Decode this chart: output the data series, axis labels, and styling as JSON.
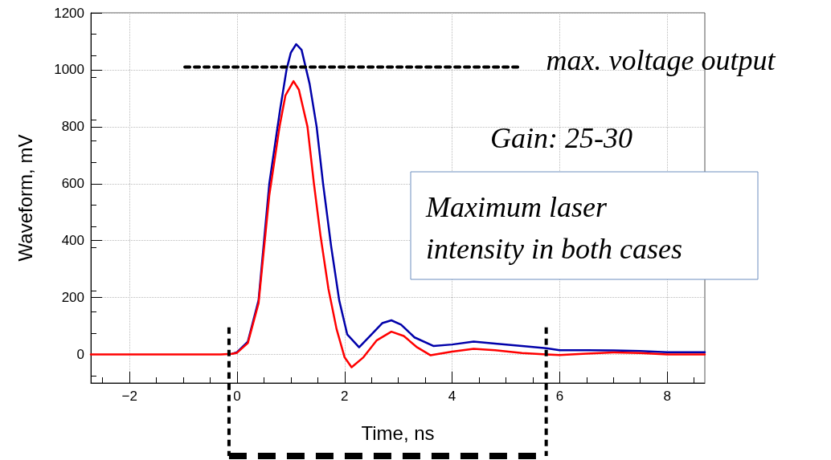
{
  "chart_data": {
    "type": "line",
    "xlabel": "Time, ns",
    "ylabel": "Waveform, mV",
    "xlim": [
      -2.72,
      8.7
    ],
    "ylim": [
      -100,
      1200
    ],
    "xticks": [
      -2,
      0,
      2,
      4,
      6,
      8
    ],
    "yticks": [
      0,
      200,
      400,
      600,
      800,
      1000,
      1200
    ],
    "grid": true,
    "marker": "none",
    "line_style": "solid",
    "series": [
      {
        "color": "#0000aa",
        "x": [
          -0.1,
          0,
          0.2,
          0.4,
          0.6,
          0.8,
          0.92,
          1.0,
          1.1,
          1.2,
          1.35,
          1.48,
          1.6,
          1.75,
          1.9,
          2.05,
          2.27,
          2.5,
          2.7,
          2.87,
          3.05,
          3.3,
          3.65,
          4.0,
          4.4,
          4.8,
          5.3,
          5.75,
          6.0,
          6.5,
          7.0,
          7.5,
          8.0,
          8.7
        ],
        "values": [
          2,
          8,
          45,
          190,
          600,
          860,
          1000,
          1060,
          1090,
          1070,
          950,
          800,
          600,
          380,
          190,
          70,
          25,
          70,
          110,
          120,
          105,
          60,
          30,
          35,
          45,
          38,
          30,
          22,
          15,
          15,
          14,
          12,
          8,
          8
        ]
      },
      {
        "color": "#ff0000",
        "x": [
          -2.72,
          -1,
          -0.3,
          -0.1,
          0,
          0.2,
          0.4,
          0.6,
          0.79,
          0.9,
          1.05,
          1.15,
          1.31,
          1.43,
          1.55,
          1.7,
          1.85,
          2.0,
          2.13,
          2.35,
          2.6,
          2.87,
          3.1,
          3.35,
          3.6,
          4.0,
          4.4,
          4.8,
          5.3,
          5.75,
          6.0,
          6.5,
          7.0,
          7.5,
          8.0,
          8.7
        ],
        "values": [
          0,
          0,
          0,
          2,
          6,
          40,
          180,
          560,
          800,
          910,
          960,
          930,
          800,
          600,
          420,
          230,
          90,
          -10,
          -45,
          -10,
          50,
          80,
          65,
          25,
          -3,
          10,
          20,
          15,
          5,
          0,
          -2,
          3,
          7,
          5,
          0,
          0
        ]
      },
      {
        "color": "#000000",
        "line_style": "dashed",
        "x": [
          -0.97,
          5.3
        ],
        "values": [
          1010,
          1010
        ]
      }
    ],
    "ref_lines": [
      {
        "axis": "x",
        "value": -0.15,
        "color": "#000000",
        "line_style": "dashed"
      },
      {
        "axis": "x",
        "value": 5.75,
        "color": "#000000",
        "line_style": "dashed"
      }
    ],
    "annotations": [
      {
        "text": "max. voltage output",
        "x": 5.3,
        "y": 1010
      },
      "Gain: 25-30",
      "Maximum laser\nintensity in both cases"
    ]
  }
}
